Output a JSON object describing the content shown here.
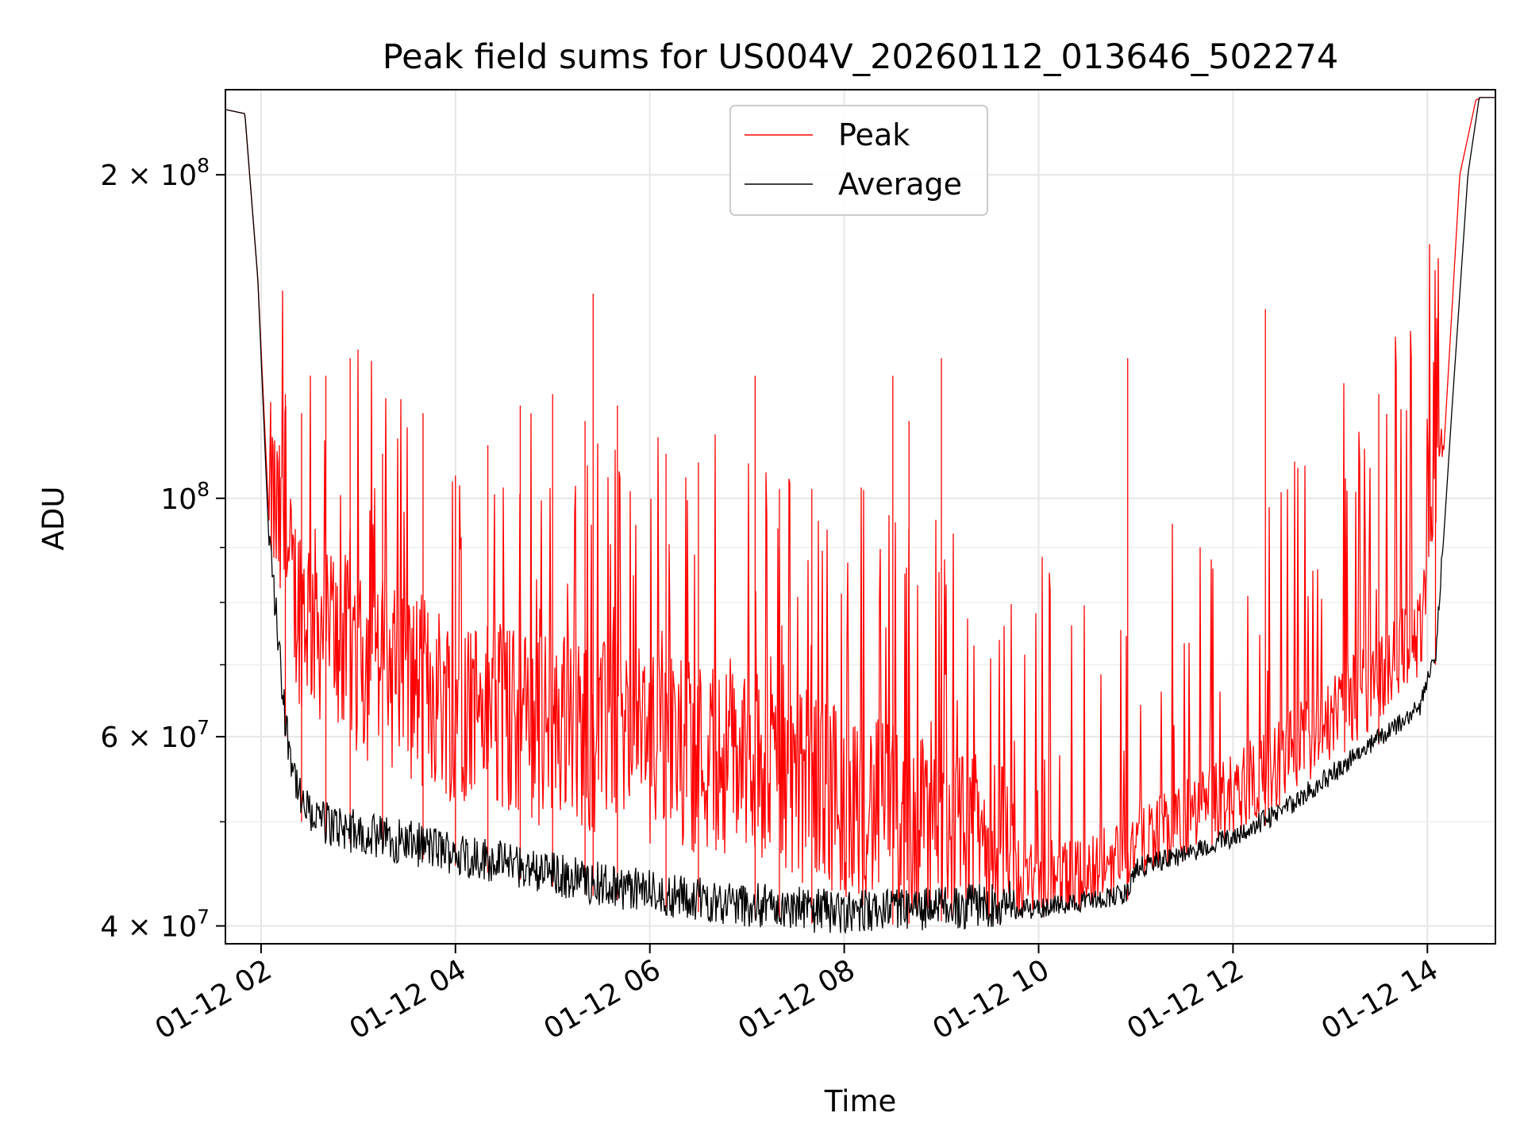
{
  "chart_data": {
    "type": "line",
    "title": "Peak field sums for US004V_20260112_013646_502274",
    "xlabel": "Time",
    "ylabel": "ADU",
    "yscale": "log",
    "ylim": [
      38500000,
      240000000
    ],
    "xlim": [
      "01-12 01:38",
      "01-12 14:42"
    ],
    "x_ticks": [
      {
        "value": "01-12 02:00",
        "label": "01-12 02"
      },
      {
        "value": "01-12 04:00",
        "label": "01-12 04"
      },
      {
        "value": "01-12 06:00",
        "label": "01-12 06"
      },
      {
        "value": "01-12 08:00",
        "label": "01-12 08"
      },
      {
        "value": "01-12 10:00",
        "label": "01-12 10"
      },
      {
        "value": "01-12 12:00",
        "label": "01-12 12"
      },
      {
        "value": "01-12 14:00",
        "label": "01-12 14"
      }
    ],
    "y_ticks": [
      {
        "value": 40000000,
        "label": "4 × 10",
        "exp": "7"
      },
      {
        "value": 60000000,
        "label": "6 × 10",
        "exp": "7"
      },
      {
        "value": 100000000,
        "label": "10",
        "exp": "8"
      },
      {
        "value": 200000000,
        "label": "2 × 10",
        "exp": "8"
      }
    ],
    "y_minor_ticks": [
      50000000,
      70000000,
      80000000,
      90000000
    ],
    "grid": true,
    "legend_position": "upper center",
    "series": [
      {
        "name": "Peak",
        "color": "#ff0000",
        "points": [
          {
            "t": "01-12 01:38",
            "v": 230000000
          },
          {
            "t": "01-12 01:50",
            "v": 228000000
          },
          {
            "t": "01-12 01:58",
            "v": 160000000
          },
          {
            "t": "01-12 02:05",
            "v": 95000000
          },
          {
            "t": "01-12 02:20",
            "v": 75000000
          },
          {
            "t": "01-12 02:40",
            "v": 70000000
          },
          {
            "t": "01-12 03:00",
            "v": 66000000
          },
          {
            "t": "01-12 03:30",
            "v": 63000000
          },
          {
            "t": "01-12 04:00",
            "v": 60000000
          },
          {
            "t": "01-12 04:30",
            "v": 58000000
          },
          {
            "t": "01-12 05:00",
            "v": 57000000
          },
          {
            "t": "01-12 05:30",
            "v": 56000000
          },
          {
            "t": "01-12 06:00",
            "v": 55000000
          },
          {
            "t": "01-12 06:30",
            "v": 54000000
          },
          {
            "t": "01-12 07:00",
            "v": 53000000
          },
          {
            "t": "01-12 07:30",
            "v": 51000000
          },
          {
            "t": "01-12 08:00",
            "v": 49000000
          },
          {
            "t": "01-12 08:30",
            "v": 47000000
          },
          {
            "t": "01-12 09:00",
            "v": 45000000
          },
          {
            "t": "01-12 09:30",
            "v": 43500000
          },
          {
            "t": "01-12 10:00",
            "v": 42000000
          },
          {
            "t": "01-12 10:30",
            "v": 42500000
          },
          {
            "t": "01-12 11:00",
            "v": 46000000
          },
          {
            "t": "01-12 11:30",
            "v": 48000000
          },
          {
            "t": "01-12 12:00",
            "v": 51000000
          },
          {
            "t": "01-12 12:30",
            "v": 55000000
          },
          {
            "t": "01-12 13:00",
            "v": 60000000
          },
          {
            "t": "01-12 13:30",
            "v": 66000000
          },
          {
            "t": "01-12 13:55",
            "v": 72000000
          },
          {
            "t": "01-12 14:10",
            "v": 110000000
          },
          {
            "t": "01-12 14:20",
            "v": 200000000
          },
          {
            "t": "01-12 14:30",
            "v": 235000000
          },
          {
            "t": "01-12 14:42",
            "v": 236000000
          }
        ],
        "spikes": [
          {
            "t": "01-12 02:15",
            "v": 125000000
          },
          {
            "t": "01-12 02:25",
            "v": 120000000
          },
          {
            "t": "01-12 02:40",
            "v": 130000000
          },
          {
            "t": "01-12 02:55",
            "v": 135000000
          },
          {
            "t": "01-12 03:15",
            "v": 110000000
          },
          {
            "t": "01-12 03:40",
            "v": 120000000
          },
          {
            "t": "01-12 04:00",
            "v": 105000000
          },
          {
            "t": "01-12 04:20",
            "v": 112000000
          },
          {
            "t": "01-12 04:40",
            "v": 122000000
          },
          {
            "t": "01-12 05:00",
            "v": 125000000
          },
          {
            "t": "01-12 05:20",
            "v": 118000000
          },
          {
            "t": "01-12 05:25",
            "v": 155000000
          },
          {
            "t": "01-12 05:40",
            "v": 122000000
          },
          {
            "t": "01-12 06:10",
            "v": 110000000
          },
          {
            "t": "01-12 06:30",
            "v": 108000000
          },
          {
            "t": "01-12 07:05",
            "v": 130000000
          },
          {
            "t": "01-12 07:20",
            "v": 102000000
          },
          {
            "t": "01-12 07:40",
            "v": 102000000
          },
          {
            "t": "01-12 08:30",
            "v": 130000000
          },
          {
            "t": "01-12 08:40",
            "v": 118000000
          },
          {
            "t": "01-12 09:00",
            "v": 135000000
          },
          {
            "t": "01-12 10:55",
            "v": 135000000
          },
          {
            "t": "01-12 12:20",
            "v": 150000000
          },
          {
            "t": "01-12 13:30",
            "v": 125000000
          },
          {
            "t": "01-12 14:05",
            "v": 125000000
          }
        ]
      },
      {
        "name": "Average",
        "color": "#000000",
        "points": [
          {
            "t": "01-12 01:38",
            "v": 230000000
          },
          {
            "t": "01-12 01:50",
            "v": 228000000
          },
          {
            "t": "01-12 01:58",
            "v": 160000000
          },
          {
            "t": "01-12 02:05",
            "v": 90000000
          },
          {
            "t": "01-12 02:15",
            "v": 60000000
          },
          {
            "t": "01-12 02:25",
            "v": 50000000
          },
          {
            "t": "01-12 02:40",
            "v": 48500000
          },
          {
            "t": "01-12 03:00",
            "v": 47500000
          },
          {
            "t": "01-12 03:30",
            "v": 46500000
          },
          {
            "t": "01-12 04:00",
            "v": 45500000
          },
          {
            "t": "01-12 04:30",
            "v": 44500000
          },
          {
            "t": "01-12 05:00",
            "v": 43500000
          },
          {
            "t": "01-12 05:30",
            "v": 42500000
          },
          {
            "t": "01-12 06:00",
            "v": 41800000
          },
          {
            "t": "01-12 06:30",
            "v": 41200000
          },
          {
            "t": "01-12 07:00",
            "v": 40700000
          },
          {
            "t": "01-12 07:30",
            "v": 40300000
          },
          {
            "t": "01-12 08:00",
            "v": 40000000
          },
          {
            "t": "01-12 08:30",
            "v": 40100000
          },
          {
            "t": "01-12 09:00",
            "v": 40400000
          },
          {
            "t": "01-12 09:30",
            "v": 40700000
          },
          {
            "t": "01-12 10:00",
            "v": 41000000
          },
          {
            "t": "01-12 10:30",
            "v": 41700000
          },
          {
            "t": "01-12 10:55",
            "v": 42300000
          },
          {
            "t": "01-12 11:00",
            "v": 44700000
          },
          {
            "t": "01-12 11:30",
            "v": 46000000
          },
          {
            "t": "01-12 12:00",
            "v": 47800000
          },
          {
            "t": "01-12 12:30",
            "v": 50500000
          },
          {
            "t": "01-12 13:00",
            "v": 54500000
          },
          {
            "t": "01-12 13:30",
            "v": 59000000
          },
          {
            "t": "01-12 13:55",
            "v": 63000000
          },
          {
            "t": "01-12 14:05",
            "v": 70000000
          },
          {
            "t": "01-12 14:15",
            "v": 120000000
          },
          {
            "t": "01-12 14:25",
            "v": 200000000
          },
          {
            "t": "01-12 14:32",
            "v": 236000000
          },
          {
            "t": "01-12 14:42",
            "v": 236000000
          }
        ]
      }
    ]
  }
}
